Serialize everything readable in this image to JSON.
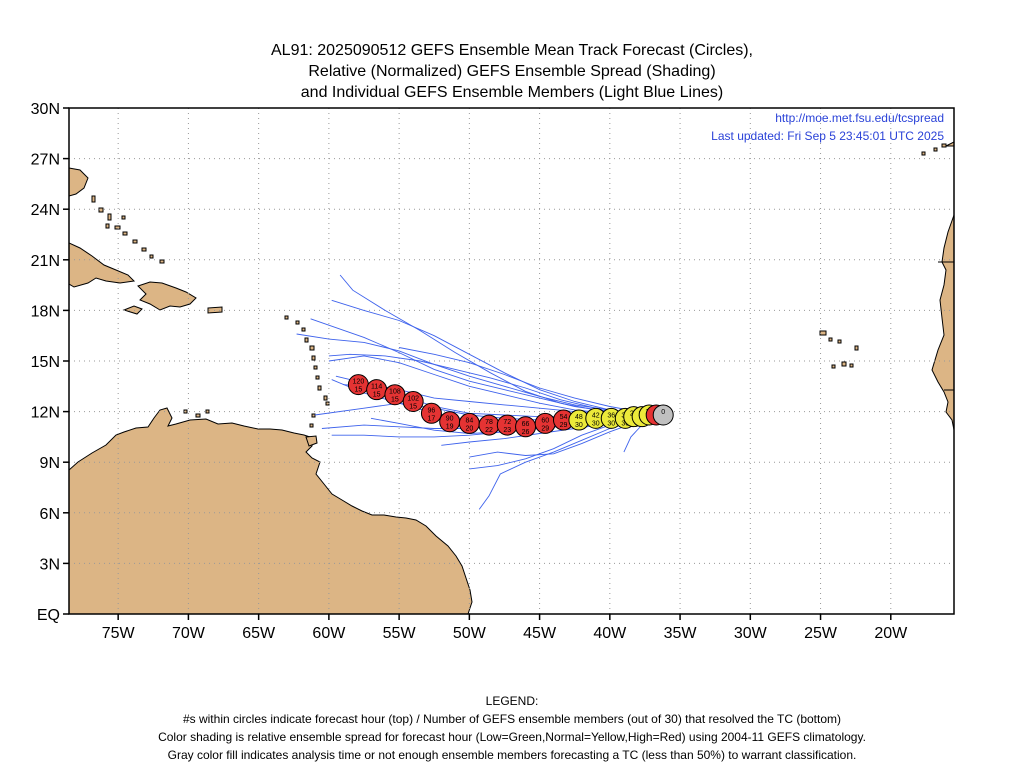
{
  "title": {
    "line1": "AL91: 2025090512 GEFS Ensemble Mean Track Forecast (Circles),",
    "line2": "Relative (Normalized) GEFS Ensemble Spread (Shading)",
    "line3": "and Individual GEFS Ensemble Members (Light Blue Lines)"
  },
  "info": {
    "url": "http://moe.met.fsu.edu/tcspread",
    "updated": "Last updated: Fri Sep  5 23:45:01 UTC 2025"
  },
  "axes": {
    "lat_labels": [
      "EQ",
      "3N",
      "6N",
      "9N",
      "12N",
      "15N",
      "18N",
      "21N",
      "24N",
      "27N",
      "30N"
    ],
    "lat_values": [
      0,
      3,
      6,
      9,
      12,
      15,
      18,
      21,
      24,
      27,
      30
    ],
    "lon_labels": [
      "75W",
      "70W",
      "65W",
      "60W",
      "55W",
      "50W",
      "45W",
      "40W",
      "35W",
      "30W",
      "25W",
      "20W"
    ],
    "lon_values": [
      -75,
      -70,
      -65,
      -60,
      -55,
      -50,
      -45,
      -40,
      -35,
      -30,
      -25,
      -20
    ],
    "lon_range": [
      -78.5,
      -15.5
    ],
    "lat_range": [
      0,
      30
    ],
    "grid": true
  },
  "colors": {
    "land": "#dcb585",
    "high": "#e53333",
    "normal": "#ecea3a",
    "analysis": "#c0c0c0",
    "members": "#3f63ec",
    "text_blue": "#2a42d8"
  },
  "track": [
    {
      "hour": "0",
      "members": "",
      "lon": -36.2,
      "lat": 11.8,
      "spread": "analysis"
    },
    {
      "hour": "6",
      "members": "",
      "lon": -36.7,
      "lat": 11.8,
      "spread": "high"
    },
    {
      "hour": "12",
      "members": "",
      "lon": -37.2,
      "lat": 11.8,
      "spread": "normal"
    },
    {
      "hour": "18",
      "members": "",
      "lon": -37.7,
      "lat": 11.7,
      "spread": "normal"
    },
    {
      "hour": "24",
      "members": "",
      "lon": -38.3,
      "lat": 11.7,
      "spread": "normal"
    },
    {
      "hour": "30",
      "members": "30",
      "lon": -38.9,
      "lat": 11.6,
      "spread": "normal"
    },
    {
      "hour": "36",
      "members": "30",
      "lon": -39.9,
      "lat": 11.6,
      "spread": "normal"
    },
    {
      "hour": "42",
      "members": "30",
      "lon": -41.0,
      "lat": 11.6,
      "spread": "normal"
    },
    {
      "hour": "48",
      "members": "30",
      "lon": -42.2,
      "lat": 11.5,
      "spread": "normal"
    },
    {
      "hour": "54",
      "members": "29",
      "lon": -43.3,
      "lat": 11.5,
      "spread": "high"
    },
    {
      "hour": "60",
      "members": "29",
      "lon": -44.6,
      "lat": 11.3,
      "spread": "high"
    },
    {
      "hour": "66",
      "members": "26",
      "lon": -46.0,
      "lat": 11.1,
      "spread": "high"
    },
    {
      "hour": "72",
      "members": "23",
      "lon": -47.3,
      "lat": 11.2,
      "spread": "high"
    },
    {
      "hour": "78",
      "members": "22",
      "lon": -48.6,
      "lat": 11.2,
      "spread": "high"
    },
    {
      "hour": "84",
      "members": "20",
      "lon": -50.0,
      "lat": 11.3,
      "spread": "high"
    },
    {
      "hour": "90",
      "members": "19",
      "lon": -51.4,
      "lat": 11.4,
      "spread": "high"
    },
    {
      "hour": "96",
      "members": "17",
      "lon": -52.7,
      "lat": 11.9,
      "spread": "high"
    },
    {
      "hour": "102",
      "members": "15",
      "lon": -54.0,
      "lat": 12.6,
      "spread": "high"
    },
    {
      "hour": "108",
      "members": "15",
      "lon": -55.3,
      "lat": 13.0,
      "spread": "high"
    },
    {
      "hour": "114",
      "members": "15",
      "lon": -56.6,
      "lat": 13.3,
      "spread": "high"
    },
    {
      "hour": "120",
      "members": "15",
      "lon": -57.9,
      "lat": 13.6,
      "spread": "high"
    }
  ],
  "member_tracks": [
    [
      [
        -36.3,
        11.8
      ],
      [
        -38.0,
        11.9
      ],
      [
        -40.0,
        12.0
      ],
      [
        -42.5,
        12.3
      ],
      [
        -45.0,
        12.8
      ],
      [
        -47.5,
        13.3
      ],
      [
        -50.0,
        13.8
      ],
      [
        -52.5,
        14.5
      ],
      [
        -55.0,
        15.5
      ],
      [
        -57.5,
        16.4
      ],
      [
        -61.3,
        17.5
      ]
    ],
    [
      [
        -36.3,
        11.8
      ],
      [
        -38.0,
        11.8
      ],
      [
        -40.0,
        11.9
      ],
      [
        -42.5,
        12.1
      ],
      [
        -45.0,
        12.5
      ],
      [
        -47.5,
        13.0
      ],
      [
        -50.0,
        13.5
      ],
      [
        -52.5,
        14.2
      ],
      [
        -55.0,
        14.9
      ],
      [
        -57.5,
        15.3
      ],
      [
        -60.0,
        15.0
      ]
    ],
    [
      [
        -36.3,
        11.8
      ],
      [
        -38.0,
        11.9
      ],
      [
        -40.0,
        12.1
      ],
      [
        -42.5,
        12.6
      ],
      [
        -45.0,
        13.3
      ],
      [
        -47.5,
        14.3
      ],
      [
        -50.0,
        15.4
      ],
      [
        -52.5,
        16.5
      ],
      [
        -55.0,
        17.4
      ],
      [
        -57.5,
        18.0
      ],
      [
        -59.8,
        18.6
      ]
    ],
    [
      [
        -36.3,
        11.8
      ],
      [
        -38.5,
        11.9
      ],
      [
        -41.0,
        12.1
      ],
      [
        -43.5,
        12.5
      ],
      [
        -46.0,
        13.2
      ],
      [
        -48.5,
        14.3
      ],
      [
        -51.0,
        15.5
      ],
      [
        -53.5,
        16.8
      ],
      [
        -56.0,
        18.0
      ],
      [
        -58.3,
        19.2
      ],
      [
        -59.2,
        20.1
      ]
    ],
    [
      [
        -36.3,
        11.8
      ],
      [
        -38.0,
        11.8
      ],
      [
        -40.0,
        11.8
      ],
      [
        -42.5,
        11.7
      ],
      [
        -45.0,
        11.7
      ],
      [
        -47.5,
        11.8
      ],
      [
        -50.0,
        11.9
      ],
      [
        -52.5,
        12.3
      ],
      [
        -55.0,
        13.0
      ],
      [
        -57.5,
        13.5
      ],
      [
        -59.0,
        13.6
      ]
    ],
    [
      [
        -36.3,
        11.8
      ],
      [
        -38.0,
        11.7
      ],
      [
        -40.0,
        11.6
      ],
      [
        -42.5,
        11.5
      ],
      [
        -45.0,
        11.5
      ],
      [
        -47.5,
        11.6
      ],
      [
        -50.0,
        11.8
      ],
      [
        -52.5,
        12.2
      ],
      [
        -55.0,
        12.5
      ],
      [
        -57.5,
        12.2
      ],
      [
        -61.0,
        11.8
      ]
    ],
    [
      [
        -36.3,
        11.8
      ],
      [
        -38.0,
        11.7
      ],
      [
        -40.0,
        11.5
      ],
      [
        -42.5,
        11.2
      ],
      [
        -45.0,
        11.0
      ],
      [
        -47.5,
        10.8
      ],
      [
        -50.0,
        10.6
      ],
      [
        -52.5,
        10.5
      ],
      [
        -55.0,
        10.5
      ],
      [
        -57.5,
        10.6
      ],
      [
        -59.8,
        10.6
      ]
    ],
    [
      [
        -36.3,
        11.8
      ],
      [
        -38.0,
        11.6
      ],
      [
        -40.0,
        11.3
      ],
      [
        -42.5,
        11.0
      ],
      [
        -45.0,
        10.7
      ],
      [
        -47.5,
        10.4
      ],
      [
        -50.0,
        10.2
      ],
      [
        -52.0,
        10.0
      ]
    ],
    [
      [
        -36.3,
        11.8
      ],
      [
        -38.0,
        11.6
      ],
      [
        -40.0,
        11.2
      ],
      [
        -42.0,
        10.6
      ],
      [
        -44.0,
        9.8
      ],
      [
        -46.0,
        9.2
      ],
      [
        -48.0,
        8.8
      ],
      [
        -50.0,
        8.6
      ]
    ],
    [
      [
        -36.3,
        11.8
      ],
      [
        -38.0,
        11.5
      ],
      [
        -40.0,
        11.0
      ],
      [
        -42.0,
        10.3
      ],
      [
        -44.0,
        9.6
      ],
      [
        -46.0,
        9.0
      ],
      [
        -47.8,
        8.3
      ],
      [
        -48.6,
        7.0
      ],
      [
        -49.3,
        6.2
      ]
    ],
    [
      [
        -36.3,
        11.8
      ],
      [
        -37.5,
        11.4
      ],
      [
        -38.5,
        10.5
      ],
      [
        -39.0,
        9.6
      ]
    ],
    [
      [
        -36.3,
        11.8
      ],
      [
        -38.0,
        11.4
      ],
      [
        -40.0,
        10.8
      ],
      [
        -42.0,
        10.1
      ],
      [
        -44.0,
        9.5
      ],
      [
        -46.0,
        9.4
      ],
      [
        -48.0,
        9.6
      ],
      [
        -50.0,
        9.3
      ]
    ],
    [
      [
        -36.3,
        11.8
      ],
      [
        -38.0,
        12.0
      ],
      [
        -40.0,
        12.3
      ],
      [
        -42.5,
        12.8
      ],
      [
        -45.0,
        13.4
      ],
      [
        -47.5,
        14.2
      ],
      [
        -50.0,
        14.9
      ],
      [
        -52.5,
        15.4
      ],
      [
        -55.0,
        15.8
      ]
    ],
    [
      [
        -36.3,
        11.8
      ],
      [
        -38.5,
        11.9
      ],
      [
        -41.0,
        12.2
      ],
      [
        -43.5,
        12.7
      ],
      [
        -46.0,
        13.4
      ],
      [
        -48.5,
        14.0
      ],
      [
        -51.0,
        14.5
      ],
      [
        -53.5,
        15.0
      ],
      [
        -56.0,
        15.3
      ],
      [
        -58.5,
        15.4
      ],
      [
        -60.0,
        15.3
      ]
    ],
    [
      [
        -36.3,
        11.8
      ],
      [
        -38.0,
        11.8
      ],
      [
        -40.0,
        11.9
      ],
      [
        -42.5,
        12.0
      ],
      [
        -45.0,
        12.2
      ],
      [
        -47.5,
        12.4
      ],
      [
        -50.0,
        12.6
      ],
      [
        -52.5,
        12.8
      ],
      [
        -55.0,
        13.3
      ],
      [
        -57.5,
        13.7
      ],
      [
        -59.5,
        14.1
      ]
    ],
    [
      [
        -36.3,
        11.8
      ],
      [
        -38.0,
        11.8
      ],
      [
        -40.0,
        11.7
      ],
      [
        -42.5,
        11.6
      ],
      [
        -45.0,
        11.4
      ],
      [
        -47.5,
        11.2
      ],
      [
        -50.0,
        11.0
      ],
      [
        -52.5,
        11.0
      ],
      [
        -55.0,
        11.1
      ],
      [
        -57.5,
        11.2
      ],
      [
        -60.5,
        11.0
      ]
    ],
    [
      [
        -36.3,
        11.8
      ],
      [
        -38.0,
        11.7
      ],
      [
        -40.0,
        11.6
      ],
      [
        -42.5,
        11.3
      ],
      [
        -45.0,
        11.0
      ],
      [
        -47.5,
        10.8
      ],
      [
        -50.0,
        10.7
      ],
      [
        -52.5,
        10.9
      ],
      [
        -55.0,
        11.3
      ],
      [
        -57.0,
        11.6
      ]
    ],
    [
      [
        -36.3,
        11.8
      ],
      [
        -38.0,
        11.9
      ],
      [
        -40.0,
        12.1
      ],
      [
        -42.5,
        12.4
      ],
      [
        -45.0,
        12.9
      ],
      [
        -47.5,
        13.5
      ],
      [
        -50.0,
        14.1
      ],
      [
        -52.5,
        14.8
      ],
      [
        -55.0,
        15.6
      ],
      [
        -57.5,
        16.1
      ],
      [
        -60.0,
        16.3
      ],
      [
        -62.3,
        16.6
      ]
    ],
    [
      [
        -36.3,
        11.8
      ],
      [
        -38.0,
        11.8
      ],
      [
        -40.0,
        11.6
      ],
      [
        -42.5,
        11.3
      ],
      [
        -45.0,
        11.2
      ],
      [
        -47.5,
        11.3
      ],
      [
        -50.0,
        11.5
      ],
      [
        -52.5,
        11.9
      ],
      [
        -55.0,
        12.5
      ],
      [
        -57.5,
        13.1
      ],
      [
        -59.8,
        13.9
      ]
    ]
  ]
}
